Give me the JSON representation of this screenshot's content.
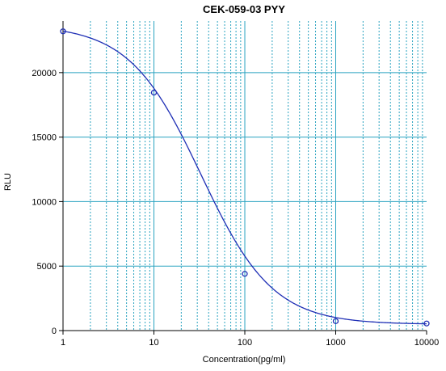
{
  "chart_data": {
    "type": "scatter",
    "title": "CEK-059-03 PYY",
    "xlabel": "Concentration(pg/ml)",
    "ylabel": "RLU",
    "x_scale": "log",
    "xlim": [
      1,
      10000
    ],
    "ylim": [
      0,
      24000
    ],
    "x_ticks": [
      1,
      10,
      100,
      1000,
      10000
    ],
    "x_tick_labels": [
      "1",
      "10",
      "100",
      "1000",
      "10000"
    ],
    "y_ticks": [
      0,
      5000,
      10000,
      15000,
      20000
    ],
    "y_tick_labels": [
      "0",
      "5000",
      "10000",
      "15000",
      "20000"
    ],
    "grid": true,
    "series": [
      {
        "points": [
          {
            "x": 1,
            "y": 23200
          },
          {
            "x": 10,
            "y": 18450
          },
          {
            "x": 100,
            "y": 4400
          },
          {
            "x": 1000,
            "y": 730
          },
          {
            "x": 10000,
            "y": 550
          }
        ]
      }
    ],
    "fit": {
      "model": "4PL",
      "top": 23700,
      "bottom": 480,
      "ec50": 33,
      "slope": 1.1
    },
    "colors": {
      "curve": "#1f2fb5",
      "marker": "#1f2fb5",
      "grid": "#2aa3c0",
      "axis": "#000000"
    }
  }
}
